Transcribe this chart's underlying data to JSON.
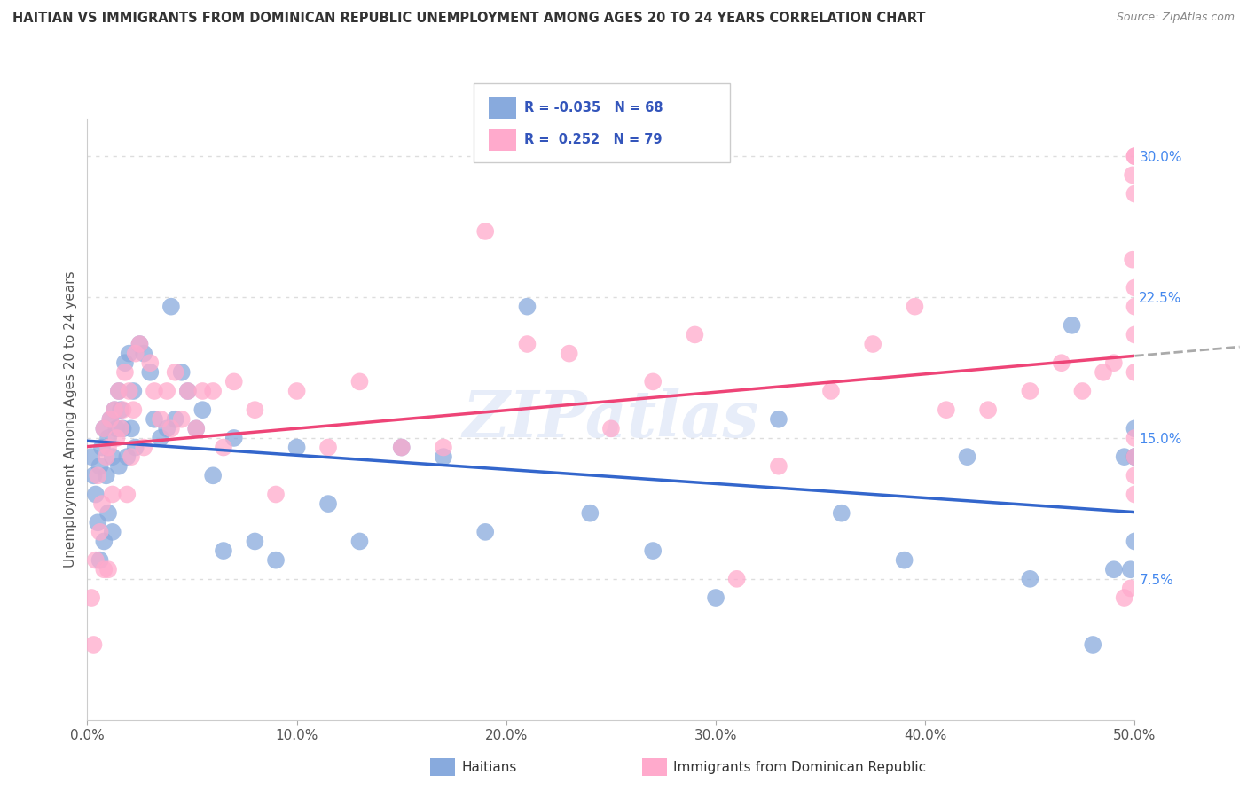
{
  "title": "HAITIAN VS IMMIGRANTS FROM DOMINICAN REPUBLIC UNEMPLOYMENT AMONG AGES 20 TO 24 YEARS CORRELATION CHART",
  "source": "Source: ZipAtlas.com",
  "ylabel": "Unemployment Among Ages 20 to 24 years",
  "xlim": [
    0.0,
    0.5
  ],
  "ylim": [
    0.0,
    0.32
  ],
  "xtick_labels": [
    "0.0%",
    "10.0%",
    "20.0%",
    "30.0%",
    "40.0%",
    "50.0%"
  ],
  "xtick_vals": [
    0.0,
    0.1,
    0.2,
    0.3,
    0.4,
    0.5
  ],
  "ytick_labels": [
    "7.5%",
    "15.0%",
    "22.5%",
    "30.0%"
  ],
  "ytick_vals": [
    0.075,
    0.15,
    0.225,
    0.3
  ],
  "blue_color": "#88AADD",
  "pink_color": "#FFAACC",
  "blue_line_color": "#3366CC",
  "pink_line_color": "#EE4477",
  "R_blue": -0.035,
  "N_blue": 68,
  "R_pink": 0.252,
  "N_pink": 79,
  "blue_x": [
    0.002,
    0.003,
    0.004,
    0.005,
    0.006,
    0.006,
    0.007,
    0.008,
    0.008,
    0.009,
    0.01,
    0.01,
    0.011,
    0.012,
    0.012,
    0.013,
    0.014,
    0.015,
    0.015,
    0.016,
    0.017,
    0.018,
    0.019,
    0.02,
    0.021,
    0.022,
    0.023,
    0.025,
    0.027,
    0.03,
    0.032,
    0.035,
    0.038,
    0.04,
    0.042,
    0.045,
    0.048,
    0.052,
    0.055,
    0.06,
    0.065,
    0.07,
    0.08,
    0.09,
    0.1,
    0.115,
    0.13,
    0.15,
    0.17,
    0.19,
    0.21,
    0.24,
    0.27,
    0.3,
    0.33,
    0.36,
    0.39,
    0.42,
    0.45,
    0.47,
    0.48,
    0.49,
    0.495,
    0.498,
    0.5,
    0.5,
    0.5,
    0.5
  ],
  "blue_y": [
    0.14,
    0.13,
    0.12,
    0.105,
    0.135,
    0.085,
    0.145,
    0.155,
    0.095,
    0.13,
    0.15,
    0.11,
    0.16,
    0.14,
    0.1,
    0.165,
    0.155,
    0.175,
    0.135,
    0.165,
    0.155,
    0.19,
    0.14,
    0.195,
    0.155,
    0.175,
    0.145,
    0.2,
    0.195,
    0.185,
    0.16,
    0.15,
    0.155,
    0.22,
    0.16,
    0.185,
    0.175,
    0.155,
    0.165,
    0.13,
    0.09,
    0.15,
    0.095,
    0.085,
    0.145,
    0.115,
    0.095,
    0.145,
    0.14,
    0.1,
    0.22,
    0.11,
    0.09,
    0.065,
    0.16,
    0.11,
    0.085,
    0.14,
    0.075,
    0.21,
    0.04,
    0.08,
    0.14,
    0.08,
    0.14,
    0.14,
    0.155,
    0.095
  ],
  "pink_x": [
    0.002,
    0.003,
    0.004,
    0.005,
    0.006,
    0.007,
    0.008,
    0.008,
    0.009,
    0.01,
    0.01,
    0.011,
    0.012,
    0.013,
    0.014,
    0.015,
    0.016,
    0.017,
    0.018,
    0.019,
    0.02,
    0.021,
    0.022,
    0.023,
    0.025,
    0.027,
    0.03,
    0.032,
    0.035,
    0.038,
    0.04,
    0.042,
    0.045,
    0.048,
    0.052,
    0.055,
    0.06,
    0.065,
    0.07,
    0.08,
    0.09,
    0.1,
    0.115,
    0.13,
    0.15,
    0.17,
    0.19,
    0.21,
    0.23,
    0.25,
    0.27,
    0.29,
    0.31,
    0.33,
    0.355,
    0.375,
    0.395,
    0.41,
    0.43,
    0.45,
    0.465,
    0.475,
    0.485,
    0.49,
    0.495,
    0.498,
    0.499,
    0.499,
    0.5,
    0.5,
    0.5,
    0.5,
    0.5,
    0.5,
    0.5,
    0.5,
    0.5,
    0.5,
    0.5
  ],
  "pink_y": [
    0.065,
    0.04,
    0.085,
    0.13,
    0.1,
    0.115,
    0.155,
    0.08,
    0.14,
    0.145,
    0.08,
    0.16,
    0.12,
    0.165,
    0.15,
    0.175,
    0.155,
    0.165,
    0.185,
    0.12,
    0.175,
    0.14,
    0.165,
    0.195,
    0.2,
    0.145,
    0.19,
    0.175,
    0.16,
    0.175,
    0.155,
    0.185,
    0.16,
    0.175,
    0.155,
    0.175,
    0.175,
    0.145,
    0.18,
    0.165,
    0.12,
    0.175,
    0.145,
    0.18,
    0.145,
    0.145,
    0.26,
    0.2,
    0.195,
    0.155,
    0.18,
    0.205,
    0.075,
    0.135,
    0.175,
    0.2,
    0.22,
    0.165,
    0.165,
    0.175,
    0.19,
    0.175,
    0.185,
    0.19,
    0.065,
    0.07,
    0.29,
    0.245,
    0.23,
    0.22,
    0.205,
    0.185,
    0.3,
    0.3,
    0.15,
    0.14,
    0.13,
    0.12,
    0.28
  ],
  "background_color": "#FFFFFF",
  "grid_color": "#DDDDDD",
  "watermark_text": "ZIPatlas",
  "legend_box_border": "#CCCCCC"
}
